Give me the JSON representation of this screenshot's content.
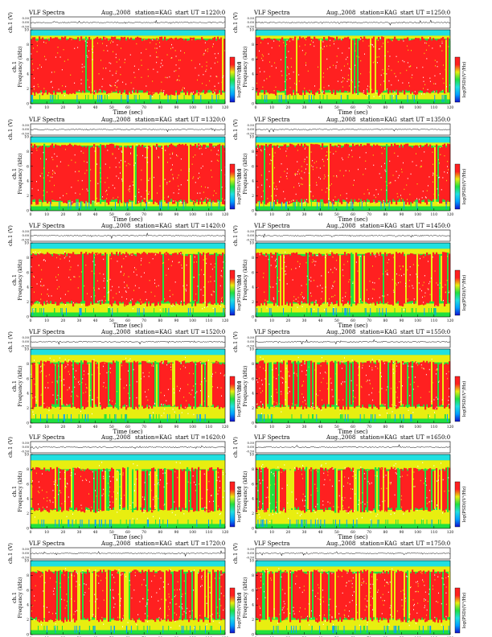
{
  "page": {
    "background": "#ffffff"
  },
  "colormap": [
    "#1010d0",
    "#00a0ff",
    "#20e0e0",
    "#20e040",
    "#e8ee10",
    "#ff2020",
    "#ff2020"
  ],
  "labels": {
    "ch1_ylabel": "ch.1 (V)",
    "freq_ylabel": "Frequency (kHz)",
    "colorbar_label": "log(PSD)(V²/Hz)",
    "xlabel": "Time (sec)"
  },
  "chart_data": [
    {
      "type": "heatmap",
      "title": "VLF Spectra",
      "date": "Aug.,2008",
      "station": "station=KAG",
      "start": "start UT =1220:0",
      "xlabel": "Time (sec)",
      "ylabel": "Frequency (kHz)",
      "xlim": [
        0,
        120
      ],
      "ylim": [
        0,
        10
      ],
      "xticks": [
        0,
        10,
        20,
        30,
        40,
        50,
        60,
        70,
        80,
        90,
        100,
        110,
        120
      ],
      "yticks": [
        0,
        2,
        4,
        6,
        8,
        10
      ],
      "waveform_yticks": [
        "0.50",
        "0.00",
        "-0.50"
      ],
      "red_band_khz": [
        1.5,
        8.8
      ],
      "intensity": 0.95
    },
    {
      "type": "heatmap",
      "title": "VLF Spectra",
      "date": "Aug.,2008",
      "station": "station=KAG",
      "start": "start UT =1250:0",
      "xlabel": "Time (sec)",
      "ylabel": "Frequency (kHz)",
      "xlim": [
        0,
        120
      ],
      "ylim": [
        0,
        10
      ],
      "xticks": [
        0,
        10,
        20,
        30,
        40,
        50,
        60,
        70,
        80,
        90,
        100,
        110,
        120
      ],
      "yticks": [
        0,
        2,
        4,
        6,
        8,
        10
      ],
      "waveform_yticks": [
        "0.50",
        "0.00",
        "-0.50"
      ],
      "red_band_khz": [
        1.5,
        8.8
      ],
      "intensity": 0.95
    },
    {
      "type": "heatmap",
      "title": "VLF Spectra",
      "date": "Aug.,2008",
      "station": "station=KAG",
      "start": "start UT =1320:0",
      "xlabel": "Time (sec)",
      "ylabel": "Frequency (kHz)",
      "xlim": [
        0,
        120
      ],
      "ylim": [
        0,
        10
      ],
      "xticks": [
        0,
        10,
        20,
        30,
        40,
        50,
        60,
        70,
        80,
        90,
        100,
        110,
        120
      ],
      "yticks": [
        0,
        2,
        4,
        6,
        8,
        10
      ],
      "waveform_yticks": [
        "0.50",
        "0.00",
        "-0.50"
      ],
      "red_band_khz": [
        1.2,
        8.8
      ],
      "intensity": 0.93
    },
    {
      "type": "heatmap",
      "title": "VLF Spectra",
      "date": "Aug.,2008",
      "station": "station=KAG",
      "start": "start UT =1350:0",
      "xlabel": "Time (sec)",
      "ylabel": "Frequency (kHz)",
      "xlim": [
        0,
        120
      ],
      "ylim": [
        0,
        10
      ],
      "xticks": [
        0,
        10,
        20,
        30,
        40,
        50,
        60,
        70,
        80,
        90,
        100,
        110,
        120
      ],
      "yticks": [
        0,
        2,
        4,
        6,
        8,
        10
      ],
      "waveform_yticks": [
        "0.50",
        "0.00",
        "-0.50"
      ],
      "red_band_khz": [
        1.2,
        8.8
      ],
      "intensity": 0.93
    },
    {
      "type": "heatmap",
      "title": "VLF Spectra",
      "date": "Aug.,2008",
      "station": "station=KAG",
      "start": "start UT =1420:0",
      "xlabel": "Time (sec)",
      "ylabel": "Frequency (kHz)",
      "xlim": [
        0,
        120
      ],
      "ylim": [
        0,
        10
      ],
      "xticks": [
        0,
        10,
        20,
        30,
        40,
        50,
        60,
        70,
        80,
        90,
        100,
        110,
        120
      ],
      "yticks": [
        0,
        2,
        4,
        6,
        8,
        10
      ],
      "waveform_yticks": [
        "0.50",
        "0.00",
        "-0.50"
      ],
      "red_band_khz": [
        1.8,
        8.5
      ],
      "intensity": 0.88
    },
    {
      "type": "heatmap",
      "title": "VLF Spectra",
      "date": "Aug.,2008",
      "station": "station=KAG",
      "start": "start UT =1450:0",
      "xlabel": "Time (sec)",
      "ylabel": "Frequency (kHz)",
      "xlim": [
        0,
        120
      ],
      "ylim": [
        0,
        10
      ],
      "xticks": [
        0,
        10,
        20,
        30,
        40,
        50,
        60,
        70,
        80,
        90,
        100,
        110,
        120
      ],
      "yticks": [
        0,
        2,
        4,
        6,
        8,
        10
      ],
      "waveform_yticks": [
        "0.50",
        "0.00",
        "-0.50"
      ],
      "red_band_khz": [
        1.8,
        8.5
      ],
      "intensity": 0.86
    },
    {
      "type": "heatmap",
      "title": "VLF Spectra",
      "date": "Aug.,2008",
      "station": "station=KAG",
      "start": "start UT =1520:0",
      "xlabel": "Time (sec)",
      "ylabel": "Frequency (kHz)",
      "xlim": [
        0,
        120
      ],
      "ylim": [
        0,
        10
      ],
      "xticks": [
        0,
        10,
        20,
        30,
        40,
        50,
        60,
        70,
        80,
        90,
        100,
        110,
        120
      ],
      "yticks": [
        0,
        2,
        4,
        6,
        8,
        10
      ],
      "waveform_yticks": [
        "0.50",
        "0.00",
        "-0.50"
      ],
      "red_band_khz": [
        2.2,
        8.2
      ],
      "intensity": 0.76
    },
    {
      "type": "heatmap",
      "title": "VLF Spectra",
      "date": "Aug.,2008",
      "station": "station=KAG",
      "start": "start UT =1550:0",
      "xlabel": "Time (sec)",
      "ylabel": "Frequency (kHz)",
      "xlim": [
        0,
        120
      ],
      "ylim": [
        0,
        10
      ],
      "xticks": [
        0,
        10,
        20,
        30,
        40,
        50,
        60,
        70,
        80,
        90,
        100,
        110,
        120
      ],
      "yticks": [
        0,
        2,
        4,
        6,
        8,
        10
      ],
      "waveform_yticks": [
        "0.50",
        "0.00",
        "-0.50"
      ],
      "red_band_khz": [
        2.2,
        8.2
      ],
      "intensity": 0.75
    },
    {
      "type": "heatmap",
      "title": "VLF Spectra",
      "date": "Aug.,2008",
      "station": "station=KAG",
      "start": "start UT =1620:0",
      "xlabel": "Time (sec)",
      "ylabel": "Frequency (kHz)",
      "xlim": [
        0,
        120
      ],
      "ylim": [
        0,
        10
      ],
      "xticks": [
        0,
        10,
        20,
        30,
        40,
        50,
        60,
        70,
        80,
        90,
        100,
        110,
        120
      ],
      "yticks": [
        0,
        2,
        4,
        6,
        8,
        10
      ],
      "waveform_yticks": [
        "0.50",
        "0.00",
        "-0.50"
      ],
      "red_band_khz": [
        2.5,
        8.0
      ],
      "intensity": 0.62
    },
    {
      "type": "heatmap",
      "title": "VLF Spectra",
      "date": "Aug.,2008",
      "station": "station=KAG",
      "start": "start UT =1650:0",
      "xlabel": "Time (sec)",
      "ylabel": "Frequency (kHz)",
      "xlim": [
        0,
        120
      ],
      "ylim": [
        0,
        10
      ],
      "xticks": [
        0,
        10,
        20,
        30,
        40,
        50,
        60,
        70,
        80,
        90,
        100,
        110,
        120
      ],
      "yticks": [
        0,
        2,
        4,
        6,
        8,
        10
      ],
      "waveform_yticks": [
        "0.50",
        "0.00",
        "-0.50"
      ],
      "red_band_khz": [
        2.5,
        8.0
      ],
      "intensity": 0.64
    },
    {
      "type": "heatmap",
      "title": "VLF Spectra",
      "date": "Aug.,2008",
      "station": "station=KAG",
      "start": "start UT =1720:0",
      "xlabel": "Time (sec)",
      "ylabel": "Frequency (kHz)",
      "xlim": [
        0,
        120
      ],
      "ylim": [
        0,
        10
      ],
      "xticks": [
        0,
        10,
        20,
        30,
        40,
        50,
        60,
        70,
        80,
        90,
        100,
        110,
        120
      ],
      "yticks": [
        0,
        2,
        4,
        6,
        8,
        10
      ],
      "waveform_yticks": [
        "0.50",
        "0.00",
        "-0.50"
      ],
      "red_band_khz": [
        2.0,
        8.5
      ],
      "intensity": 0.74
    },
    {
      "type": "heatmap",
      "title": "VLF Spectra",
      "date": "Aug.,2008",
      "station": "station=KAG",
      "start": "start UT =1750:0",
      "xlabel": "Time (sec)",
      "ylabel": "Frequency (kHz)",
      "xlim": [
        0,
        120
      ],
      "ylim": [
        0,
        10
      ],
      "xticks": [
        0,
        10,
        20,
        30,
        40,
        50,
        60,
        70,
        80,
        90,
        100,
        110,
        120
      ],
      "yticks": [
        0,
        2,
        4,
        6,
        8,
        10
      ],
      "waveform_yticks": [
        "0.50",
        "0.00",
        "-0.50"
      ],
      "red_band_khz": [
        2.0,
        8.5
      ],
      "intensity": 0.76
    }
  ]
}
